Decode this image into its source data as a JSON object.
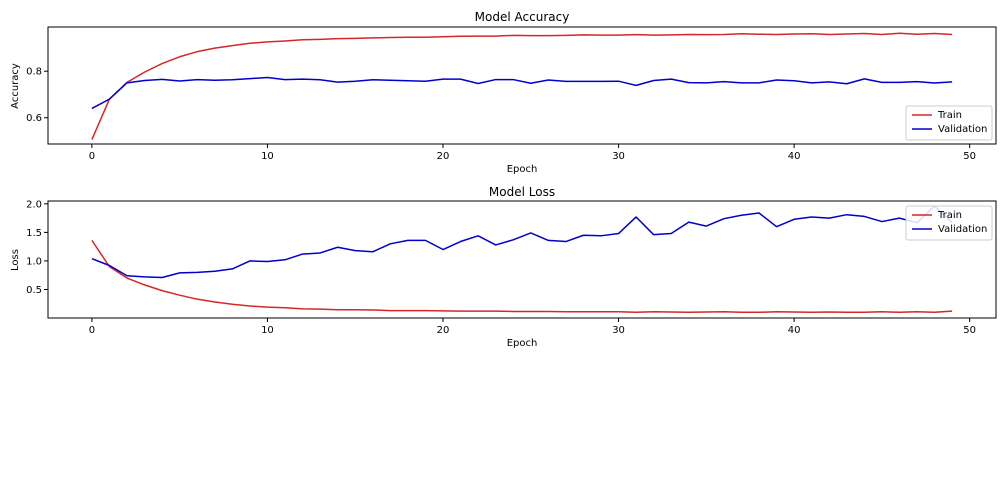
{
  "chart_data": [
    {
      "type": "line",
      "title": "Model Accuracy",
      "xlabel": "Epoch",
      "ylabel": "Accuracy",
      "xlim": [
        -2.5,
        51.5
      ],
      "ylim": [
        0.487,
        0.99
      ],
      "xticks": [
        0,
        10,
        20,
        30,
        40,
        50
      ],
      "yticks": [
        0.6,
        0.8
      ],
      "ytick_labels": [
        "0.6",
        "0.8"
      ],
      "legend": "lower-right",
      "grid": false,
      "x": [
        0,
        1,
        2,
        3,
        4,
        5,
        6,
        7,
        8,
        9,
        10,
        11,
        12,
        13,
        14,
        15,
        16,
        17,
        18,
        19,
        20,
        21,
        22,
        23,
        24,
        25,
        26,
        27,
        28,
        29,
        30,
        31,
        32,
        33,
        34,
        35,
        36,
        37,
        38,
        39,
        40,
        41,
        42,
        43,
        44,
        45,
        46,
        47,
        48,
        49
      ],
      "series": [
        {
          "name": "Train",
          "color": "#d62728",
          "values": [
            0.506,
            0.68,
            0.752,
            0.796,
            0.833,
            0.862,
            0.884,
            0.899,
            0.91,
            0.92,
            0.926,
            0.93,
            0.935,
            0.937,
            0.94,
            0.941,
            0.943,
            0.945,
            0.946,
            0.946,
            0.948,
            0.95,
            0.951,
            0.951,
            0.954,
            0.953,
            0.953,
            0.954,
            0.956,
            0.955,
            0.955,
            0.957,
            0.955,
            0.956,
            0.958,
            0.957,
            0.958,
            0.961,
            0.959,
            0.958,
            0.96,
            0.961,
            0.958,
            0.96,
            0.962,
            0.958,
            0.963,
            0.959,
            0.962,
            0.958
          ]
        },
        {
          "name": "Validation",
          "color": "#0000cc",
          "values": [
            0.64,
            0.68,
            0.75,
            0.76,
            0.765,
            0.758,
            0.764,
            0.761,
            0.763,
            0.768,
            0.773,
            0.764,
            0.766,
            0.763,
            0.753,
            0.757,
            0.763,
            0.761,
            0.759,
            0.757,
            0.766,
            0.766,
            0.747,
            0.764,
            0.764,
            0.748,
            0.762,
            0.756,
            0.756,
            0.756,
            0.757,
            0.739,
            0.76,
            0.766,
            0.751,
            0.75,
            0.755,
            0.75,
            0.75,
            0.762,
            0.759,
            0.75,
            0.754,
            0.746,
            0.767,
            0.752,
            0.752,
            0.755,
            0.749,
            0.754
          ]
        }
      ]
    },
    {
      "type": "line",
      "title": "Model Loss",
      "xlabel": "Epoch",
      "ylabel": "Loss",
      "xlim": [
        -2.5,
        51.5
      ],
      "ylim": [
        0.0,
        2.05
      ],
      "xticks": [
        0,
        10,
        20,
        30,
        40,
        50
      ],
      "yticks": [
        0.5,
        1.0,
        1.5,
        2.0
      ],
      "ytick_labels": [
        "0.5",
        "1.0",
        "1.5",
        "2.0"
      ],
      "legend": "upper-right",
      "grid": false,
      "x": [
        0,
        1,
        2,
        3,
        4,
        5,
        6,
        7,
        8,
        9,
        10,
        11,
        12,
        13,
        14,
        15,
        16,
        17,
        18,
        19,
        20,
        21,
        22,
        23,
        24,
        25,
        26,
        27,
        28,
        29,
        30,
        31,
        32,
        33,
        34,
        35,
        36,
        37,
        38,
        39,
        40,
        41,
        42,
        43,
        44,
        45,
        46,
        47,
        48,
        49
      ],
      "series": [
        {
          "name": "Train",
          "color": "#d62728",
          "values": [
            1.36,
            0.9,
            0.7,
            0.58,
            0.48,
            0.4,
            0.33,
            0.28,
            0.24,
            0.21,
            0.19,
            0.18,
            0.16,
            0.155,
            0.145,
            0.145,
            0.14,
            0.13,
            0.13,
            0.13,
            0.125,
            0.12,
            0.12,
            0.12,
            0.115,
            0.115,
            0.115,
            0.11,
            0.11,
            0.11,
            0.11,
            0.1,
            0.11,
            0.105,
            0.1,
            0.105,
            0.11,
            0.1,
            0.1,
            0.11,
            0.105,
            0.1,
            0.105,
            0.1,
            0.1,
            0.11,
            0.1,
            0.11,
            0.1,
            0.12
          ]
        },
        {
          "name": "Validation",
          "color": "#0000cc",
          "values": [
            1.04,
            0.92,
            0.74,
            0.72,
            0.71,
            0.79,
            0.8,
            0.82,
            0.86,
            1.0,
            0.99,
            1.02,
            1.12,
            1.14,
            1.24,
            1.18,
            1.16,
            1.3,
            1.36,
            1.36,
            1.2,
            1.34,
            1.44,
            1.28,
            1.37,
            1.49,
            1.36,
            1.34,
            1.45,
            1.44,
            1.48,
            1.77,
            1.46,
            1.48,
            1.68,
            1.61,
            1.74,
            1.8,
            1.84,
            1.6,
            1.73,
            1.77,
            1.75,
            1.81,
            1.78,
            1.69,
            1.75,
            1.67,
            1.96,
            1.67
          ]
        }
      ]
    }
  ]
}
